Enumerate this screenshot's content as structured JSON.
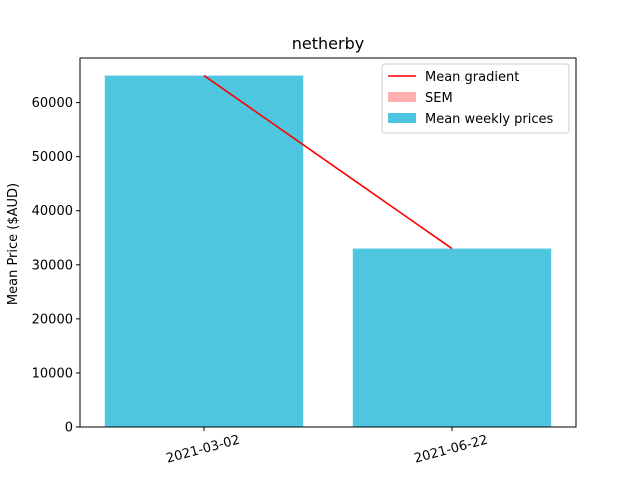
{
  "chart_data": {
    "type": "bar",
    "title": "netherby",
    "xlabel": "",
    "ylabel": "Mean Price ($AUD)",
    "categories": [
      "2021-03-02",
      "2021-06-22"
    ],
    "series": [
      {
        "name": "Mean weekly prices",
        "type": "bar",
        "values": [
          65000,
          33000
        ],
        "color": "#4ec6e0"
      },
      {
        "name": "SEM",
        "type": "errorbar",
        "values": [
          0,
          0
        ],
        "color": "#fdaeae"
      },
      {
        "name": "Mean gradient",
        "type": "line",
        "values": [
          65000,
          33000
        ],
        "color": "#ff0000"
      }
    ],
    "ylim": [
      0,
      68250
    ],
    "yticks": [
      0,
      10000,
      20000,
      30000,
      40000,
      50000,
      60000
    ],
    "ytick_labels": [
      "0",
      "10000",
      "20000",
      "30000",
      "40000",
      "50000",
      "60000"
    ],
    "xtick_rotation_deg": 15,
    "grid": false,
    "legend_position": "top-right",
    "legend": [
      "Mean gradient",
      "SEM",
      "Mean weekly prices"
    ]
  }
}
